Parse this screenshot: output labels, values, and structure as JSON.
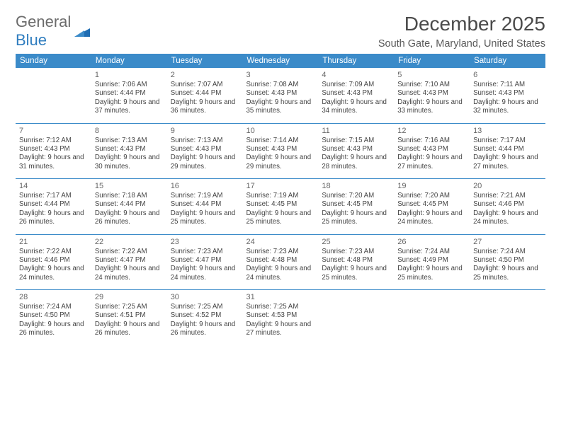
{
  "logo": {
    "general": "General",
    "blue": "Blue"
  },
  "title": "December 2025",
  "location": "South Gate, Maryland, United States",
  "colors": {
    "header_bg": "#3b8bc9",
    "header_text": "#ffffff",
    "rule": "#3b8bc9",
    "logo_gray": "#6b6b6b",
    "logo_blue": "#2f7dbf",
    "title_color": "#4a4a4a",
    "body_text": "#444444",
    "background": "#ffffff"
  },
  "typography": {
    "title_fontsize": 28,
    "location_fontsize": 14.5,
    "weekday_fontsize": 11.5,
    "daynum_fontsize": 11,
    "cell_fontsize": 9.7
  },
  "weekdays": [
    "Sunday",
    "Monday",
    "Tuesday",
    "Wednesday",
    "Thursday",
    "Friday",
    "Saturday"
  ],
  "weeks": [
    [
      null,
      {
        "d": "1",
        "sr": "7:06 AM",
        "ss": "4:44 PM",
        "dl": "9 hours and 37 minutes."
      },
      {
        "d": "2",
        "sr": "7:07 AM",
        "ss": "4:44 PM",
        "dl": "9 hours and 36 minutes."
      },
      {
        "d": "3",
        "sr": "7:08 AM",
        "ss": "4:43 PM",
        "dl": "9 hours and 35 minutes."
      },
      {
        "d": "4",
        "sr": "7:09 AM",
        "ss": "4:43 PM",
        "dl": "9 hours and 34 minutes."
      },
      {
        "d": "5",
        "sr": "7:10 AM",
        "ss": "4:43 PM",
        "dl": "9 hours and 33 minutes."
      },
      {
        "d": "6",
        "sr": "7:11 AM",
        "ss": "4:43 PM",
        "dl": "9 hours and 32 minutes."
      }
    ],
    [
      {
        "d": "7",
        "sr": "7:12 AM",
        "ss": "4:43 PM",
        "dl": "9 hours and 31 minutes."
      },
      {
        "d": "8",
        "sr": "7:13 AM",
        "ss": "4:43 PM",
        "dl": "9 hours and 30 minutes."
      },
      {
        "d": "9",
        "sr": "7:13 AM",
        "ss": "4:43 PM",
        "dl": "9 hours and 29 minutes."
      },
      {
        "d": "10",
        "sr": "7:14 AM",
        "ss": "4:43 PM",
        "dl": "9 hours and 29 minutes."
      },
      {
        "d": "11",
        "sr": "7:15 AM",
        "ss": "4:43 PM",
        "dl": "9 hours and 28 minutes."
      },
      {
        "d": "12",
        "sr": "7:16 AM",
        "ss": "4:43 PM",
        "dl": "9 hours and 27 minutes."
      },
      {
        "d": "13",
        "sr": "7:17 AM",
        "ss": "4:44 PM",
        "dl": "9 hours and 27 minutes."
      }
    ],
    [
      {
        "d": "14",
        "sr": "7:17 AM",
        "ss": "4:44 PM",
        "dl": "9 hours and 26 minutes."
      },
      {
        "d": "15",
        "sr": "7:18 AM",
        "ss": "4:44 PM",
        "dl": "9 hours and 26 minutes."
      },
      {
        "d": "16",
        "sr": "7:19 AM",
        "ss": "4:44 PM",
        "dl": "9 hours and 25 minutes."
      },
      {
        "d": "17",
        "sr": "7:19 AM",
        "ss": "4:45 PM",
        "dl": "9 hours and 25 minutes."
      },
      {
        "d": "18",
        "sr": "7:20 AM",
        "ss": "4:45 PM",
        "dl": "9 hours and 25 minutes."
      },
      {
        "d": "19",
        "sr": "7:20 AM",
        "ss": "4:45 PM",
        "dl": "9 hours and 24 minutes."
      },
      {
        "d": "20",
        "sr": "7:21 AM",
        "ss": "4:46 PM",
        "dl": "9 hours and 24 minutes."
      }
    ],
    [
      {
        "d": "21",
        "sr": "7:22 AM",
        "ss": "4:46 PM",
        "dl": "9 hours and 24 minutes."
      },
      {
        "d": "22",
        "sr": "7:22 AM",
        "ss": "4:47 PM",
        "dl": "9 hours and 24 minutes."
      },
      {
        "d": "23",
        "sr": "7:23 AM",
        "ss": "4:47 PM",
        "dl": "9 hours and 24 minutes."
      },
      {
        "d": "24",
        "sr": "7:23 AM",
        "ss": "4:48 PM",
        "dl": "9 hours and 24 minutes."
      },
      {
        "d": "25",
        "sr": "7:23 AM",
        "ss": "4:48 PM",
        "dl": "9 hours and 25 minutes."
      },
      {
        "d": "26",
        "sr": "7:24 AM",
        "ss": "4:49 PM",
        "dl": "9 hours and 25 minutes."
      },
      {
        "d": "27",
        "sr": "7:24 AM",
        "ss": "4:50 PM",
        "dl": "9 hours and 25 minutes."
      }
    ],
    [
      {
        "d": "28",
        "sr": "7:24 AM",
        "ss": "4:50 PM",
        "dl": "9 hours and 26 minutes."
      },
      {
        "d": "29",
        "sr": "7:25 AM",
        "ss": "4:51 PM",
        "dl": "9 hours and 26 minutes."
      },
      {
        "d": "30",
        "sr": "7:25 AM",
        "ss": "4:52 PM",
        "dl": "9 hours and 26 minutes."
      },
      {
        "d": "31",
        "sr": "7:25 AM",
        "ss": "4:53 PM",
        "dl": "9 hours and 27 minutes."
      },
      null,
      null,
      null
    ]
  ],
  "labels": {
    "sunrise": "Sunrise: ",
    "sunset": "Sunset: ",
    "daylight": "Daylight: "
  }
}
